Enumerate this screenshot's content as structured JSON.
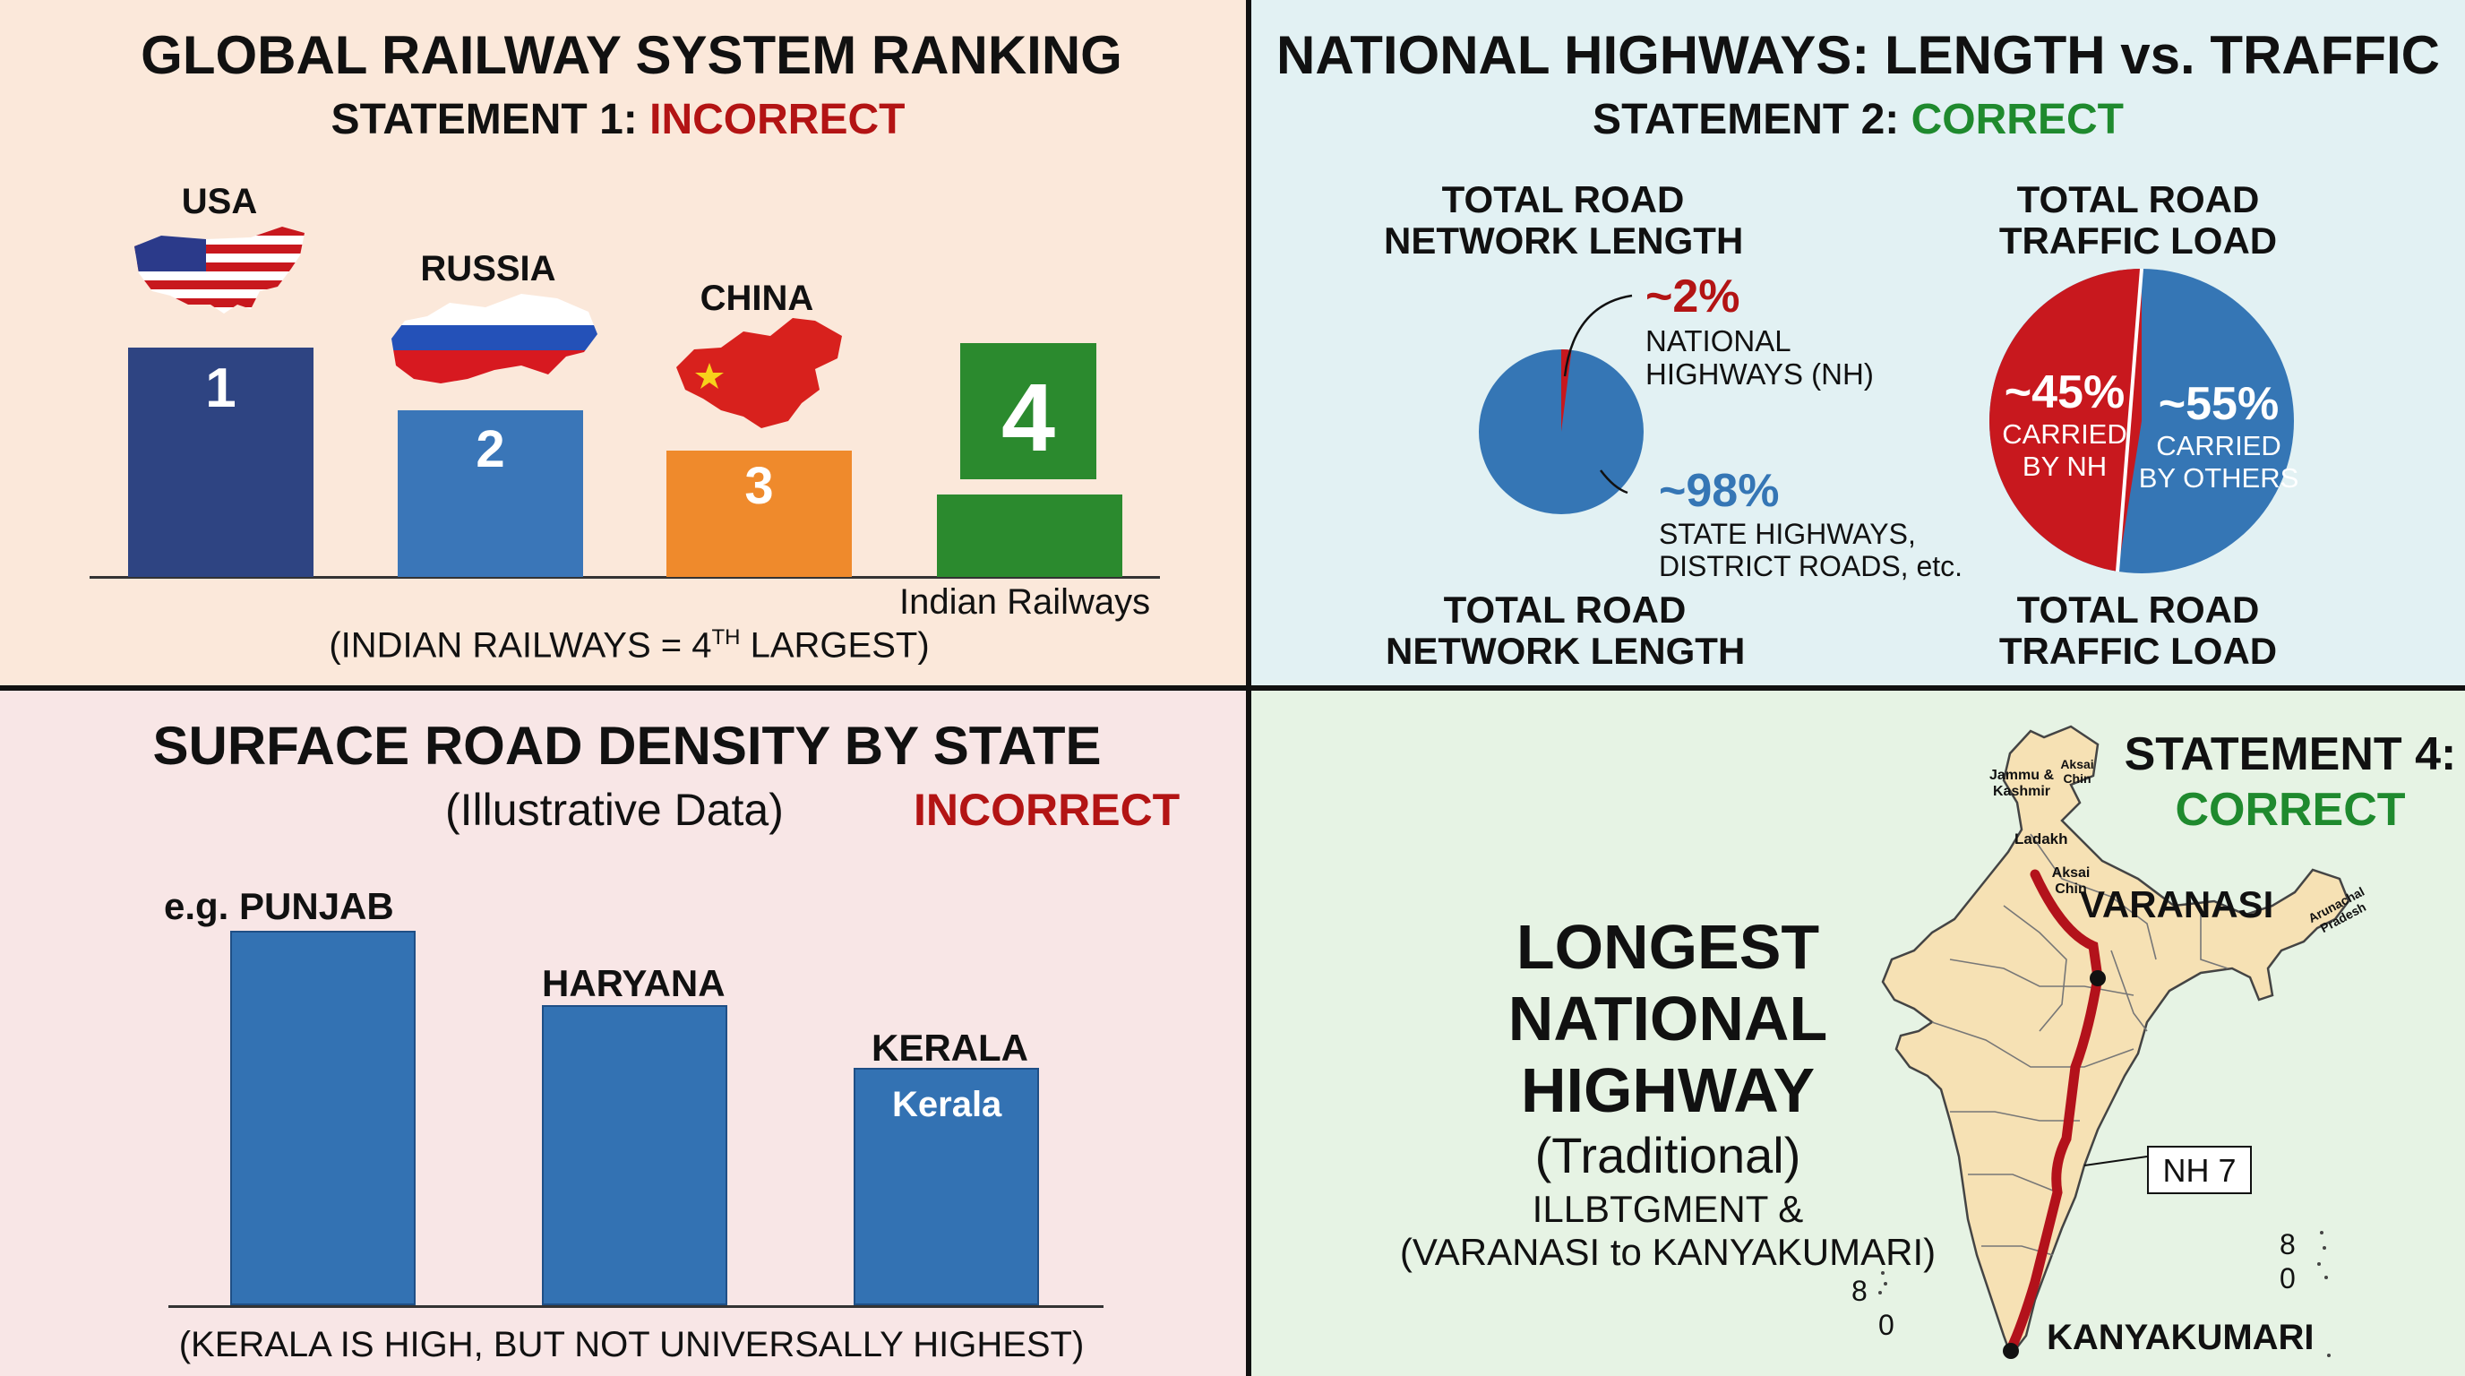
{
  "railways": {
    "title": "GLOBAL RAILWAY SYSTEM RANKING",
    "statement_prefix": "STATEMENT 1:",
    "statement_verdict": "INCORRECT",
    "ranks": [
      {
        "country": "USA",
        "rank": "1",
        "color": "#2e4482"
      },
      {
        "country": "RUSSIA",
        "rank": "2",
        "color": "#3a76b8"
      },
      {
        "country": "CHINA",
        "rank": "3",
        "color": "#ef8a2c"
      },
      {
        "country": "",
        "rank": "4",
        "color": "#2b8a2e"
      }
    ],
    "india_label": "Indian Railways",
    "footnote_main": "(INDIAN RAILWAYS = 4",
    "footnote_sup": "TH",
    "footnote_end": " LARGEST)"
  },
  "highways": {
    "title": "NATIONAL HIGHWAYS: LENGTH vs. TRAFFIC",
    "statement_prefix": "STATEMENT 2:",
    "statement_verdict": "CORRECT",
    "left_header_1": "TOTAL ROAD",
    "left_header_2": "NETWORK LENGTH",
    "right_header_1": "TOTAL ROAD",
    "right_header_2": "TRAFFIC LOAD",
    "left_footer_1": "TOTAL ROAD",
    "left_footer_2": "NETWORK LENGTH",
    "right_footer_1": "TOTAL ROAD",
    "right_footer_2": "TRAFFIC LOAD",
    "length_nh_pct": "~2%",
    "length_nh_label_1": "NATIONAL",
    "length_nh_label_2": "HIGHWAYS (NH)",
    "length_other_pct": "~98%",
    "length_other_label_1": "STATE HIGHWAYS,",
    "length_other_label_2": "DISTRICT ROADS, etc.",
    "traffic_nh_pct": "~45%",
    "traffic_nh_label_1": "CARRIED",
    "traffic_nh_label_2": "BY NH",
    "traffic_other_pct": "~55%",
    "traffic_other_label_1": "CARRIED",
    "traffic_other_label_2": "BY OTHERS",
    "colors": {
      "nh": "#c8181e",
      "other": "#3576b5"
    }
  },
  "density": {
    "title": "SURFACE ROAD DENSITY BY STATE",
    "subtitle": "(Illustrative Data)",
    "verdict": "INCORRECT",
    "bars": [
      {
        "label": "e.g. PUNJAB",
        "value": 0.96,
        "inner": ""
      },
      {
        "label": "HARYANA",
        "value": 0.77,
        "inner": ""
      },
      {
        "label": "KERALA",
        "value": 0.61,
        "inner": "Kerala"
      }
    ],
    "footnote": "(KERALA IS HIGH, BUT NOT UNIVERSALLY HIGHEST)",
    "bar_color": "#3372b3"
  },
  "nh7": {
    "statement_prefix": "STATEMENT 4:",
    "statement_verdict": "CORRECT",
    "heading_1": "LONGEST",
    "heading_2": "NATIONAL",
    "heading_3": "HIGHWAY",
    "heading_4": "(Traditional)",
    "desc_1": "ILLBTGMENT &",
    "desc_2": "(VARANASI to KANYAKUMARI)",
    "map_labels": {
      "jk_1": "Jammu &",
      "jk_2": "Kashmir",
      "aksai_1": "Aksai",
      "aksai_2": "Chin",
      "ladakh": "Ladakh",
      "aksai2_1": "Aksai",
      "aksai2_2": "Chin",
      "arunachal_1": "Arunachal",
      "arunachal_2": "Pradesh",
      "varanasi": "VARANASI",
      "kanyakumari": "KANYAKUMARI",
      "nh": "NH 7",
      "islands_left_1": "8",
      "islands_left_2": "0",
      "islands_right_1": "8",
      "islands_right_2": "0"
    },
    "colors": {
      "map_fill": "#f6e1b4",
      "route": "#b3121b"
    }
  }
}
